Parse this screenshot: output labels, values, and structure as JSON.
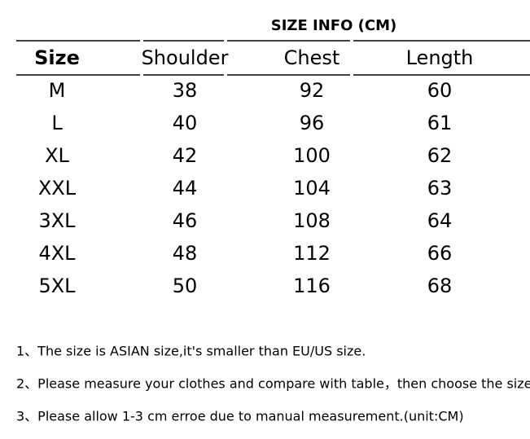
{
  "header": {
    "title": "SIZE INFO (CM)"
  },
  "table": {
    "columns": [
      "Size",
      "Shoulder",
      "Chest",
      "Length"
    ],
    "rows": [
      [
        "M",
        "38",
        "92",
        "60"
      ],
      [
        "L",
        "40",
        "96",
        "61"
      ],
      [
        "XL",
        "42",
        "100",
        "62"
      ],
      [
        "XXL",
        "44",
        "104",
        "63"
      ],
      [
        "3XL",
        "46",
        "108",
        "64"
      ],
      [
        "4XL",
        "48",
        "112",
        "66"
      ],
      [
        "5XL",
        "50",
        "116",
        "68"
      ]
    ]
  },
  "notes": [
    "1、The size is ASIAN size,it's smaller than EU/US size.",
    "2、Please measure your clothes and compare with table，then choose the size",
    "3、Please allow 1-3 cm erroe due to manual measurement.(unit:CM)"
  ]
}
